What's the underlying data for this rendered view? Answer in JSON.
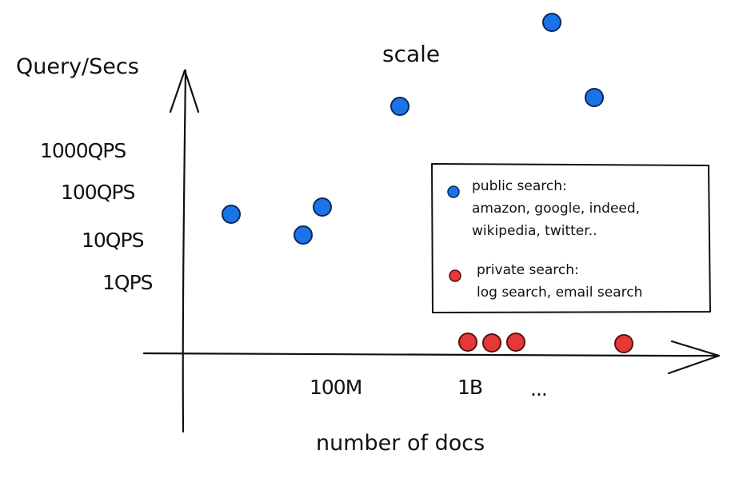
{
  "chart_data": {
    "type": "scatter",
    "title": "scale",
    "ylabel": "Query/Secs",
    "xlabel": "number of docs",
    "y_tick_labels": [
      "1000QPS",
      "100QPS",
      "10QPS",
      "1QPS"
    ],
    "x_tick_labels": [
      "100M",
      "1B",
      "..."
    ],
    "legend_position": "right",
    "series": [
      {
        "name": "public search",
        "legend_lines": [
          "public search:",
          "amazon, google, indeed,",
          "wikipedia, twitter.."
        ],
        "color": "#1a73e8",
        "points": [
          {
            "x": "below 100M",
            "y": "~50QPS"
          },
          {
            "x": "100M",
            "y": "~10QPS"
          },
          {
            "x": "100M+",
            "y": "~70QPS"
          },
          {
            "x": "1B",
            "y": "above 1000QPS"
          },
          {
            "x": "...",
            "y": "well above 1000QPS"
          },
          {
            "x": "...",
            "y": "above 1000QPS"
          }
        ]
      },
      {
        "name": "private search",
        "legend_lines": [
          "private search:",
          "log search, email search"
        ],
        "color": "#e53935",
        "points": [
          {
            "x": "1B",
            "y": "~0"
          },
          {
            "x": "1B",
            "y": "~0"
          },
          {
            "x": "1B+",
            "y": "~0"
          },
          {
            "x": "...",
            "y": "~0"
          }
        ]
      }
    ]
  }
}
